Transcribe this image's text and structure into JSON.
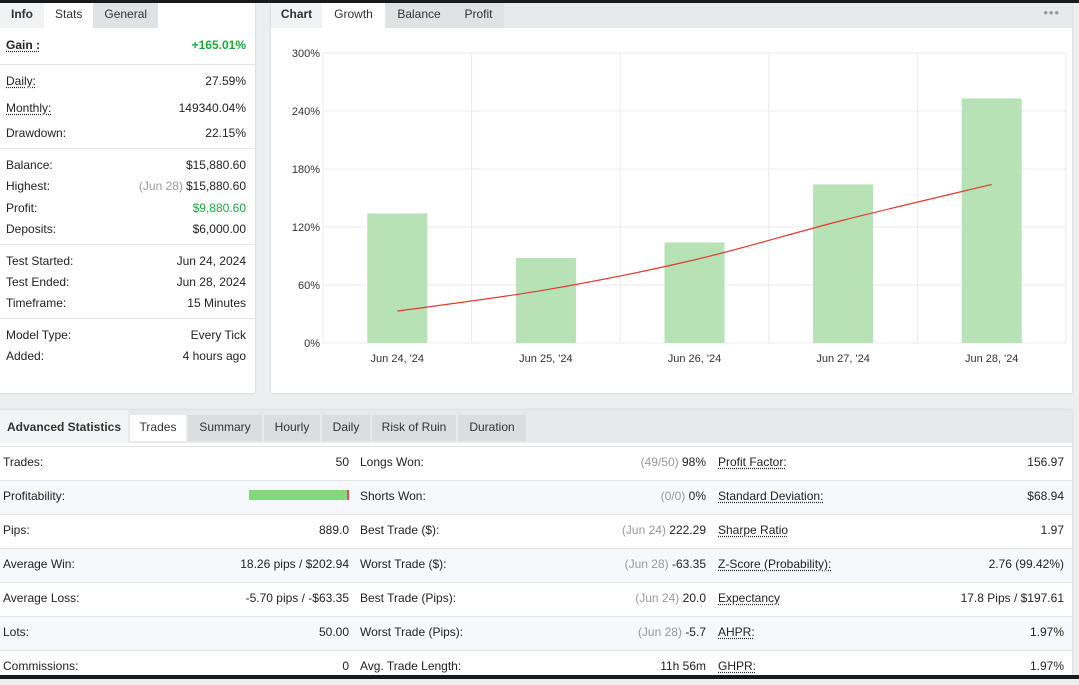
{
  "info_panel": {
    "tabs": [
      "Info",
      "Stats",
      "General"
    ],
    "rows": {
      "gain": {
        "label": "Gain :",
        "value": "+165.01%"
      },
      "daily": {
        "label": "Daily:",
        "value": "27.59%"
      },
      "monthly": {
        "label": "Monthly:",
        "value": "149340.04%"
      },
      "drawdown": {
        "label": "Drawdown:",
        "value": "22.15%"
      },
      "balance": {
        "label": "Balance:",
        "value": "$15,880.60"
      },
      "highest": {
        "label": "Highest:",
        "date": "(Jun 28)",
        "value": "$15,880.60"
      },
      "profit": {
        "label": "Profit:",
        "value": "$9,880.60"
      },
      "deposits": {
        "label": "Deposits:",
        "value": "$6,000.00"
      },
      "test_started": {
        "label": "Test Started:",
        "value": "Jun 24, 2024"
      },
      "test_ended": {
        "label": "Test Ended:",
        "value": "Jun 28, 2024"
      },
      "timeframe": {
        "label": "Timeframe:",
        "value": "15 Minutes"
      },
      "model_type": {
        "label": "Model Type:",
        "value": "Every Tick"
      },
      "added": {
        "label": "Added:",
        "value": "4 hours ago"
      }
    }
  },
  "chart_panel": {
    "tabs": [
      "Chart",
      "Growth",
      "Balance",
      "Profit"
    ],
    "menu_icon": "more-dots-icon",
    "menu_glyph": "•••"
  },
  "chart_data": {
    "type": "bar",
    "categories": [
      "Jun 24, '24",
      "Jun 25, '24",
      "Jun 26, '24",
      "Jun 27, '24",
      "Jun 28, '24"
    ],
    "series": [
      {
        "type": "bar",
        "values": [
          134,
          88,
          104,
          164,
          253
        ],
        "color": "#b6e2b6"
      },
      {
        "type": "line",
        "values": [
          33,
          55,
          86,
          127,
          164
        ],
        "color": "#e23a2e"
      }
    ],
    "y_ticks": [
      "0%",
      "60%",
      "120%",
      "180%",
      "240%",
      "300%"
    ],
    "ylim": [
      0,
      300
    ],
    "grid": true
  },
  "advanced": {
    "tabs": [
      "Advanced Statistics",
      "Trades",
      "Summary",
      "Hourly",
      "Daily",
      "Risk of Ruin",
      "Duration"
    ],
    "profitability_fraction": 0.98,
    "rows": [
      {
        "c1_label": "Trades:",
        "c1_value": "50",
        "c2_label": "Longs Won:",
        "c2_pre": "(49/50)",
        "c2_value": "98%",
        "c3_label": "Profit Factor:",
        "c3_value": "156.97"
      },
      {
        "c1_label": "Profitability:",
        "c1_value": "",
        "c2_label": "Shorts Won:",
        "c2_pre": "(0/0)",
        "c2_value": "0%",
        "c3_label": "Standard Deviation:",
        "c3_value": "$68.94"
      },
      {
        "c1_label": "Pips:",
        "c1_value": "889.0",
        "c2_label": "Best Trade ($):",
        "c2_pre": "(Jun 24)",
        "c2_value": "222.29",
        "c3_label": "Sharpe Ratio",
        "c3_value": "1.97"
      },
      {
        "c1_label": "Average Win:",
        "c1_value": "18.26 pips / $202.94",
        "c2_label": "Worst Trade ($):",
        "c2_pre": "(Jun 28)",
        "c2_value": "-63.35",
        "c3_label": "Z-Score (Probability):",
        "c3_value": "2.76 (99.42%)"
      },
      {
        "c1_label": "Average Loss:",
        "c1_value": "-5.70 pips / -$63.35",
        "c2_label": "Best Trade (Pips):",
        "c2_pre": "(Jun 24)",
        "c2_value": "20.0",
        "c3_label": "Expectancy",
        "c3_value": "17.8 Pips / $197.61"
      },
      {
        "c1_label": "Lots:",
        "c1_value": "50.00",
        "c2_label": "Worst Trade (Pips):",
        "c2_pre": "(Jun 28)",
        "c2_value": "-5.7",
        "c3_label": "AHPR:",
        "c3_value": "1.97%"
      },
      {
        "c1_label": "Commissions:",
        "c1_value": "0",
        "c2_label": "Avg. Trade Length:",
        "c2_pre": "",
        "c2_value": "11h 56m",
        "c3_label": "GHPR:",
        "c3_value": "1.97%"
      }
    ]
  }
}
